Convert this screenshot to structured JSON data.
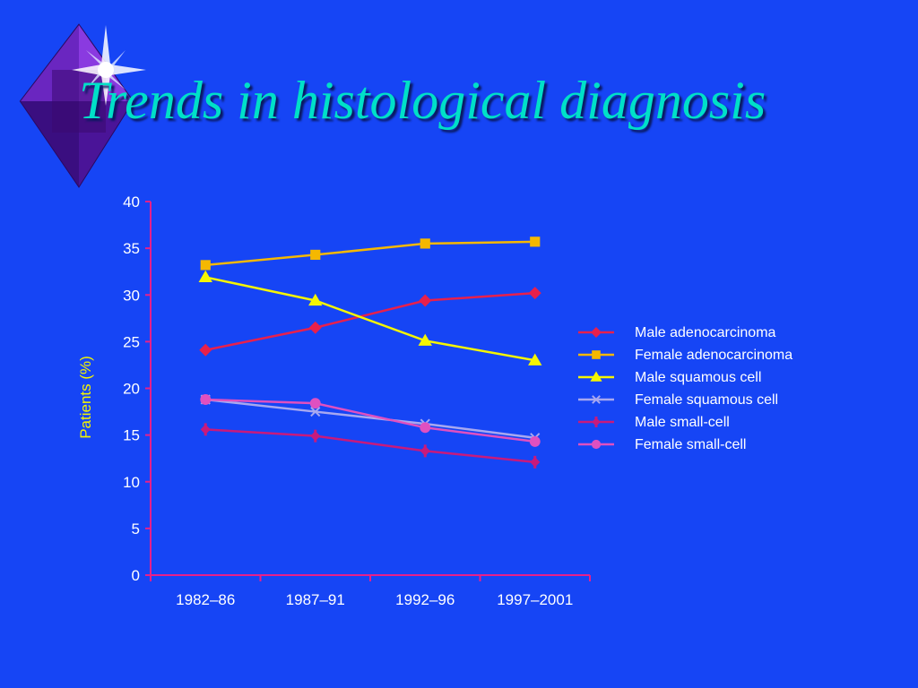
{
  "slide": {
    "title": "Trends in histological diagnosis",
    "logo_icon": "diamond-star-icon"
  },
  "chart_data": {
    "type": "line",
    "title": "",
    "xlabel": "",
    "ylabel": "Patients (%)",
    "categories": [
      "1982–86",
      "1987–91",
      "1992–96",
      "1997–2001"
    ],
    "ylim": [
      0,
      40
    ],
    "yticks": [
      0,
      5,
      10,
      15,
      20,
      25,
      30,
      35,
      40
    ],
    "grid": false,
    "legend_position": "right",
    "series": [
      {
        "name": "Male adenocarcinoma",
        "values": [
          24.1,
          26.5,
          29.4,
          30.2
        ],
        "color": "#e8204c",
        "marker": "diamond"
      },
      {
        "name": "Female adenocarcinoma",
        "values": [
          33.2,
          34.3,
          35.5,
          35.7
        ],
        "color": "#f5b800",
        "marker": "square"
      },
      {
        "name": "Male squamous cell",
        "values": [
          31.9,
          29.4,
          25.1,
          23.0
        ],
        "color": "#f5f500",
        "marker": "triangle"
      },
      {
        "name": "Female squamous cell",
        "values": [
          18.8,
          17.5,
          16.2,
          14.7
        ],
        "color": "#a8a8f0",
        "marker": "x"
      },
      {
        "name": "Male small-cell",
        "values": [
          15.6,
          14.9,
          13.3,
          12.1
        ],
        "color": "#c81a7c",
        "marker": "star"
      },
      {
        "name": "Female small-cell",
        "values": [
          18.8,
          18.4,
          15.8,
          14.3
        ],
        "color": "#e050c0",
        "marker": "circle"
      }
    ]
  }
}
